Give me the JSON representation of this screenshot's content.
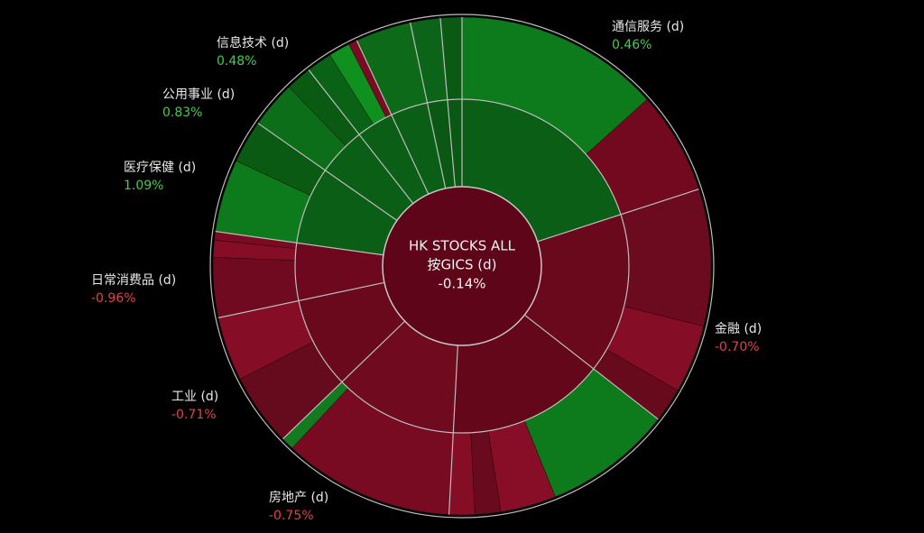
{
  "chart_data": {
    "type": "sunburst",
    "center_lines": [
      "HK STOCKS ALL",
      "按GICS (d)"
    ],
    "center_value": -0.14,
    "center_value_label": "-0.14%",
    "sectors": [
      {
        "name": "通信服务 (d)",
        "change": 0.46,
        "change_label": "0.46%",
        "size": 72,
        "color": "#0b5e15",
        "children": [
          {
            "size": 48,
            "color": "#0d7a1b"
          },
          {
            "size": 24,
            "color": "#72091f"
          }
        ]
      },
      {
        "name": "金融 (d)",
        "change": -0.7,
        "change_label": "-0.70%",
        "size": 56,
        "color": "#6a081c",
        "children": [
          {
            "size": 32,
            "color": "#6c0a20"
          },
          {
            "size": 16,
            "color": "#850d25"
          },
          {
            "size": 8,
            "color": "#660a1c"
          }
        ]
      },
      {
        "name": null,
        "size": 55,
        "color": "#64071b",
        "children": [
          {
            "size": 30,
            "color": "#0d7a1b"
          },
          {
            "size": 13,
            "color": "#880e27"
          },
          {
            "size": 6,
            "color": "#690a1e"
          },
          {
            "size": 6,
            "color": "#860d26"
          }
        ]
      },
      {
        "name": "房地产 (d)",
        "change": -0.75,
        "change_label": "-0.75%",
        "size": 43,
        "color": "#700a1f",
        "children": [
          {
            "size": 40,
            "color": "#780b22"
          },
          {
            "size": 3,
            "color": "#137a1f"
          }
        ]
      },
      {
        "name": "工业 (d)",
        "change": -0.71,
        "change_label": "-0.71%",
        "size": 32,
        "color": "#6a081c",
        "children": [
          {
            "size": 17,
            "color": "#660a1e"
          },
          {
            "size": 15,
            "color": "#850d25"
          }
        ]
      },
      {
        "name": "日常消费品 (d)",
        "change": -0.96,
        "change_label": "-0.96%",
        "size": 20,
        "color": "#6e081e",
        "children": [
          {
            "size": 14,
            "color": "#700a20"
          },
          {
            "size": 4,
            "color": "#860d26"
          },
          {
            "size": 2,
            "color": "#7a0b22"
          }
        ]
      },
      {
        "name": "医疗保健 (d)",
        "change": 1.09,
        "change_label": "1.09%",
        "size": 27,
        "color": "#0b5e15",
        "children": [
          {
            "size": 17,
            "color": "#0d7a1b"
          },
          {
            "size": 10,
            "color": "#0a5a14"
          }
        ]
      },
      {
        "name": "公用事业 (d)",
        "change": 0.83,
        "change_label": "0.83%",
        "size": 17,
        "color": "#0b5e15",
        "children": [
          {
            "size": 11,
            "color": "#0c6e19"
          },
          {
            "size": 6,
            "color": "#0a5a14"
          }
        ]
      },
      {
        "name": "信息技术 (d)",
        "change": 0.48,
        "change_label": "0.48%",
        "size": 13,
        "color": "#0b5e15",
        "children": [
          {
            "size": 6,
            "color": "#0a6216"
          },
          {
            "size": 5,
            "color": "#10901f"
          },
          {
            "size": 2,
            "color": "#7a0b22"
          }
        ]
      },
      {
        "name": null,
        "size": 13,
        "color": "#0b5e15",
        "children": [
          {
            "size": 13,
            "color": "#0c6a18"
          }
        ]
      },
      {
        "name": null,
        "size": 7,
        "color": "#0a5813",
        "children": [
          {
            "size": 7,
            "color": "#0b6417"
          }
        ]
      },
      {
        "name": null,
        "size": 5,
        "color": "#0a5813",
        "children": [
          {
            "size": 5,
            "color": "#0a5a14"
          }
        ]
      }
    ]
  }
}
